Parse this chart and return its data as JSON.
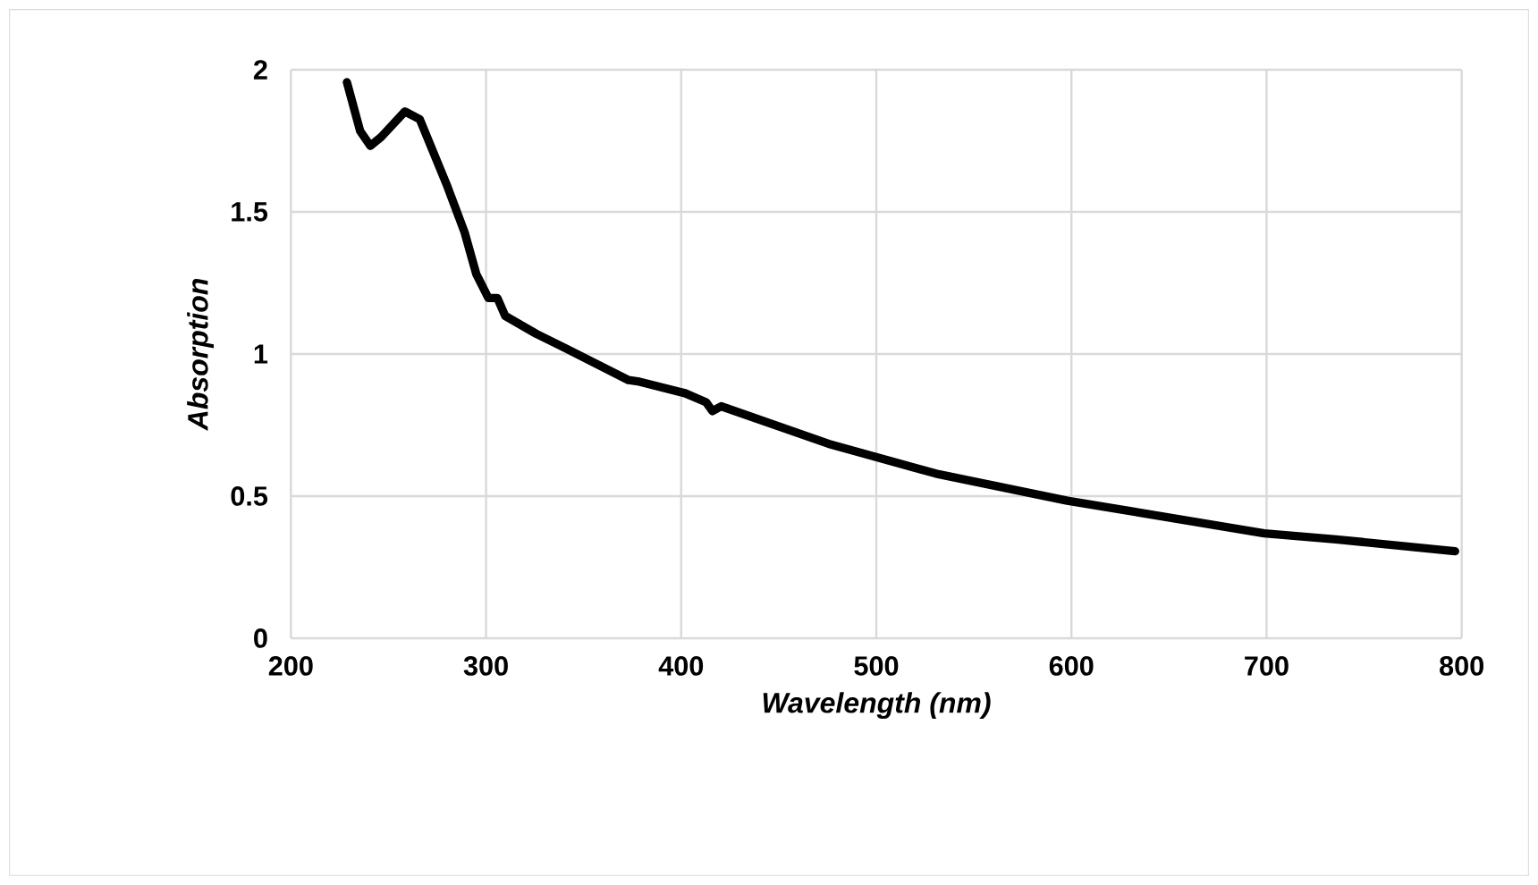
{
  "chart_data": {
    "type": "line",
    "xlabel": "Wavelength (nm)",
    "ylabel": "Absorption",
    "xlim": [
      200,
      800
    ],
    "ylim": [
      0,
      2
    ],
    "xticks": [
      200,
      300,
      400,
      500,
      600,
      700,
      800
    ],
    "yticks": [
      0,
      0.5,
      1,
      1.5,
      2
    ],
    "grid": true,
    "series": [
      {
        "color": "#000000",
        "x": [
          228.7,
          235.5,
          240.7,
          246.2,
          258.4,
          266,
          279.8,
          289,
          295,
          301.2,
          305.8,
          309.8,
          325.7,
          341,
          373,
          377.7,
          402,
          412.8,
          416,
          420.5,
          475.5,
          530.6,
          597.9,
          698.8,
          735.5,
          796.6
        ],
        "values": [
          1.956,
          1.784,
          1.732,
          1.763,
          1.853,
          1.826,
          1.596,
          1.428,
          1.281,
          1.197,
          1.197,
          1.134,
          1.071,
          1.019,
          0.908,
          0.904,
          0.862,
          0.83,
          0.799,
          0.816,
          0.684,
          0.579,
          0.484,
          0.369,
          0.348,
          0.306
        ]
      }
    ]
  }
}
